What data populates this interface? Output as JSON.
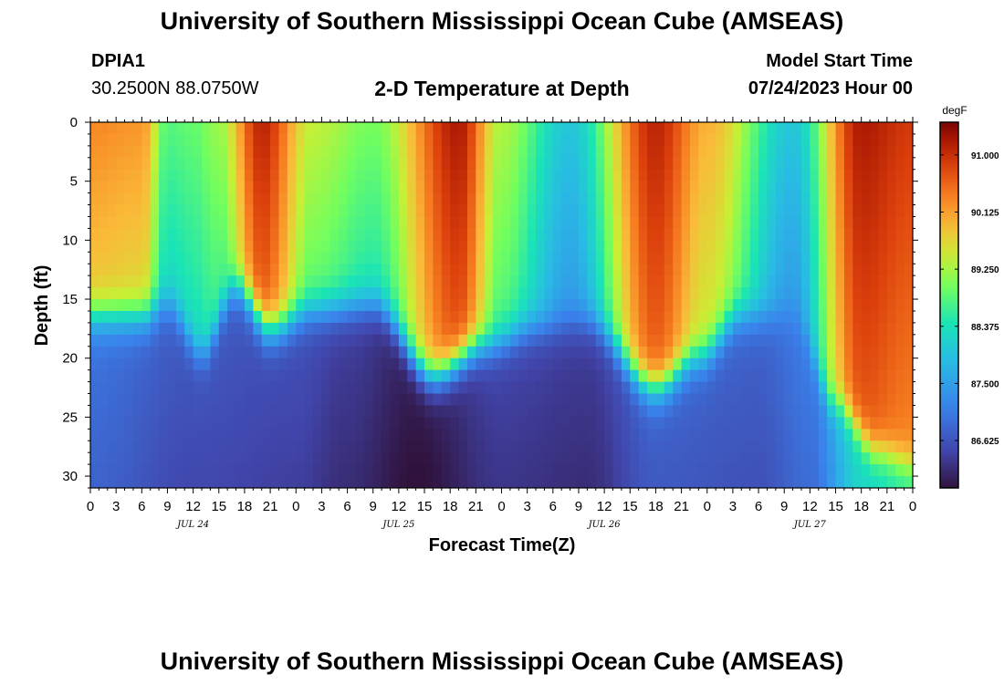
{
  "header": {
    "title": "University of Southern Mississippi Ocean Cube (AMSEAS)",
    "station": "DPIA1",
    "coords": "30.2500N  88.0750W",
    "product": "2-D Temperature at Depth",
    "model_label": "Model Start Time",
    "model_time": "07/24/2023 Hour 00"
  },
  "footer": {
    "title": "University of Southern Mississippi Ocean Cube (AMSEAS)"
  },
  "chart_data": {
    "type": "heatmap",
    "title": "2-D Temperature at Depth",
    "xlabel": "Forecast Time(Z)",
    "ylabel": "Depth (ft)",
    "x_hours_range": [
      0,
      96
    ],
    "x_tick_labels": [
      "0",
      "3",
      "6",
      "9",
      "12",
      "15",
      "18",
      "21",
      "0",
      "3",
      "6",
      "9",
      "12",
      "15",
      "18",
      "21",
      "0",
      "3",
      "6",
      "9",
      "12",
      "15",
      "18",
      "21",
      "0",
      "3",
      "6",
      "9",
      "12",
      "15",
      "18",
      "21",
      "0"
    ],
    "date_labels": [
      {
        "text": "JUL 24",
        "hour": 12
      },
      {
        "text": "JUL 25",
        "hour": 36
      },
      {
        "text": "JUL 26",
        "hour": 60
      },
      {
        "text": "JUL 27",
        "hour": 84
      }
    ],
    "ylim": [
      0,
      31
    ],
    "y_ticks": [
      0,
      5,
      10,
      15,
      20,
      25,
      30
    ],
    "colorbar": {
      "unit": "degF",
      "range": [
        85.9,
        91.5
      ],
      "ticks": [
        "91.000",
        "90.125",
        "89.250",
        "88.375",
        "87.500",
        "86.625"
      ]
    },
    "surface_temp_hourly": [
      {
        "hour": 0,
        "value": 90.3
      },
      {
        "hour": 6,
        "value": 90.2
      },
      {
        "hour": 9,
        "value": 88.8
      },
      {
        "hour": 12,
        "value": 88.9
      },
      {
        "hour": 15,
        "value": 89.2
      },
      {
        "hour": 20,
        "value": 91.1
      },
      {
        "hour": 26,
        "value": 89.4
      },
      {
        "hour": 33,
        "value": 89.0
      },
      {
        "hour": 43,
        "value": 91.2
      },
      {
        "hour": 48,
        "value": 89.3
      },
      {
        "hour": 56,
        "value": 88.0
      },
      {
        "hour": 66,
        "value": 91.1
      },
      {
        "hour": 72,
        "value": 90.0
      },
      {
        "hour": 82,
        "value": 88.0
      },
      {
        "hour": 90,
        "value": 91.2
      },
      {
        "hour": 96,
        "value": 90.9
      }
    ],
    "thermocline_depth_ft": [
      {
        "hour": 0,
        "value": 16.5
      },
      {
        "hour": 6,
        "value": 16.5
      },
      {
        "hour": 9,
        "value": 15.5
      },
      {
        "hour": 13,
        "value": 19.5
      },
      {
        "hour": 17,
        "value": 14.0
      },
      {
        "hour": 21,
        "value": 17.5
      },
      {
        "hour": 26,
        "value": 16.0
      },
      {
        "hour": 33,
        "value": 15.5
      },
      {
        "hour": 40,
        "value": 21.5
      },
      {
        "hour": 46,
        "value": 19.0
      },
      {
        "hour": 52,
        "value": 17.5
      },
      {
        "hour": 58,
        "value": 17.0
      },
      {
        "hour": 66,
        "value": 22.5
      },
      {
        "hour": 71,
        "value": 20.0
      },
      {
        "hour": 76,
        "value": 16.5
      },
      {
        "hour": 82,
        "value": 16.5
      },
      {
        "hour": 87,
        "value": 24.0
      },
      {
        "hour": 92,
        "value": 28.0
      },
      {
        "hour": 96,
        "value": 29.0
      }
    ],
    "bottom_temp_hourly": [
      {
        "hour": 0,
        "value": 86.8
      },
      {
        "hour": 12,
        "value": 86.5
      },
      {
        "hour": 24,
        "value": 86.4
      },
      {
        "hour": 30,
        "value": 86.2
      },
      {
        "hour": 38,
        "value": 85.9
      },
      {
        "hour": 48,
        "value": 86.3
      },
      {
        "hour": 58,
        "value": 86.2
      },
      {
        "hour": 66,
        "value": 86.7
      },
      {
        "hour": 78,
        "value": 86.6
      },
      {
        "hour": 84,
        "value": 86.9
      },
      {
        "hour": 90,
        "value": 88.2
      },
      {
        "hour": 96,
        "value": 88.5
      }
    ]
  }
}
